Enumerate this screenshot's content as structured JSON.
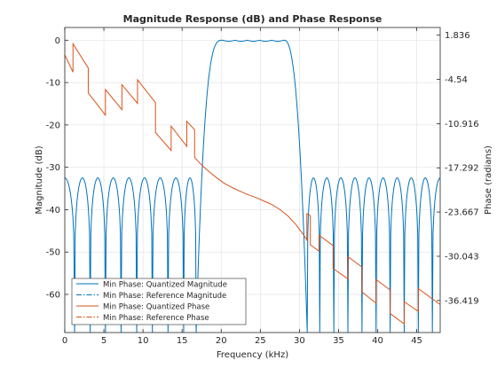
{
  "chart_data": {
    "type": "line",
    "title": "Magnitude Response (dB) and Phase Response",
    "xlabel": "Frequency (kHz)",
    "ylabel_left": "Magnitude (dB)",
    "ylabel_right": "Phase (radians)",
    "xlim": [
      0,
      48
    ],
    "ylim_left": [
      -69,
      3
    ],
    "ylim_right": [
      -41.04,
      2.94
    ],
    "x_ticks": [
      0,
      5,
      10,
      15,
      20,
      25,
      30,
      35,
      40,
      45
    ],
    "y_left_ticks": [
      0,
      -10,
      -20,
      -30,
      -40,
      -50,
      -60
    ],
    "y_right_ticks": [
      "1.836",
      "-4.54",
      "-10.916",
      "-17.292",
      "-23.667",
      "-30.043",
      "-36.419"
    ],
    "grid": true,
    "legend_position": "bottom-left",
    "colors": {
      "magnitude": "#0072BD",
      "phase": "#D95319",
      "axes": "#262626",
      "grid": "#e3e3e3"
    },
    "series": [
      {
        "name": "Min Phase: Quantized Magnitude",
        "axis": "left",
        "style": "solid",
        "color": "#0072BD",
        "stopband_lobe_peak_db": -32.5,
        "notch_floor_db": -69,
        "left_stopband_notches_khz": [
          1.25,
          3.25,
          5.2,
          7.2,
          9.2,
          11.2,
          13.2,
          15.2,
          16.8
        ],
        "right_stopband_notches_khz": [
          31.0,
          32.6,
          34.4,
          36.2,
          38.0,
          39.8,
          41.6,
          43.4,
          45.2,
          47.0
        ],
        "passband_khz": [
          20.2,
          28.0
        ],
        "passband_db": 0,
        "transition_low_khz": [
          16.8,
          20.2
        ],
        "transition_high_khz": [
          28.0,
          31.0
        ]
      },
      {
        "name": "Min Phase: Reference Magnitude",
        "axis": "left",
        "style": "dashdot",
        "color": "#0072BD"
      },
      {
        "name": "Min Phase: Quantized Phase",
        "axis": "right",
        "style": "solid",
        "color": "#D95319",
        "points": [
          [
            0,
            -1.0
          ],
          [
            1.05,
            -3.5
          ],
          [
            1.05,
            0.6
          ],
          [
            3.0,
            -2.9
          ],
          [
            3.0,
            -6.5
          ],
          [
            5.2,
            -9.7
          ],
          [
            5.2,
            -6.0
          ],
          [
            7.3,
            -8.9
          ],
          [
            7.3,
            -5.3
          ],
          [
            9.3,
            -8.0
          ],
          [
            9.3,
            -4.6
          ],
          [
            11.6,
            -7.9
          ],
          [
            11.6,
            -12.2
          ],
          [
            13.6,
            -14.8
          ],
          [
            13.6,
            -11.3
          ],
          [
            15.6,
            -14.2
          ],
          [
            15.6,
            -10.6
          ],
          [
            16.6,
            -11.8
          ],
          [
            16.6,
            -15.8
          ],
          [
            17.5,
            -16.9
          ],
          [
            18.5,
            -17.9
          ],
          [
            19.5,
            -18.8
          ],
          [
            20.5,
            -19.6
          ],
          [
            21.5,
            -20.2
          ],
          [
            22.5,
            -20.7
          ],
          [
            23.5,
            -21.2
          ],
          [
            24.5,
            -21.6
          ],
          [
            25.5,
            -22.1
          ],
          [
            26.5,
            -22.6
          ],
          [
            27.5,
            -23.3
          ],
          [
            28.5,
            -24.2
          ],
          [
            29.5,
            -25.4
          ],
          [
            30.5,
            -26.9
          ],
          [
            30.95,
            -27.7
          ],
          [
            30.95,
            -23.9
          ],
          [
            31.4,
            -24.2
          ],
          [
            31.4,
            -28.4
          ],
          [
            32.5,
            -29.3
          ],
          [
            32.5,
            -27.0
          ],
          [
            34.3,
            -28.5
          ],
          [
            34.3,
            -31.8
          ],
          [
            36.2,
            -33.3
          ],
          [
            36.2,
            -30.1
          ],
          [
            38.0,
            -31.6
          ],
          [
            38.0,
            -35.2
          ],
          [
            39.8,
            -36.8
          ],
          [
            39.8,
            -33.4
          ],
          [
            41.6,
            -34.9
          ],
          [
            41.6,
            -38.3
          ],
          [
            43.4,
            -39.8
          ],
          [
            43.4,
            -36.6
          ],
          [
            45.2,
            -38.0
          ],
          [
            45.2,
            -34.7
          ],
          [
            47.0,
            -36.2
          ],
          [
            48.0,
            -37.0
          ]
        ]
      },
      {
        "name": "Min Phase: Reference Phase",
        "axis": "right",
        "style": "dashdot",
        "color": "#D95319"
      }
    ]
  }
}
